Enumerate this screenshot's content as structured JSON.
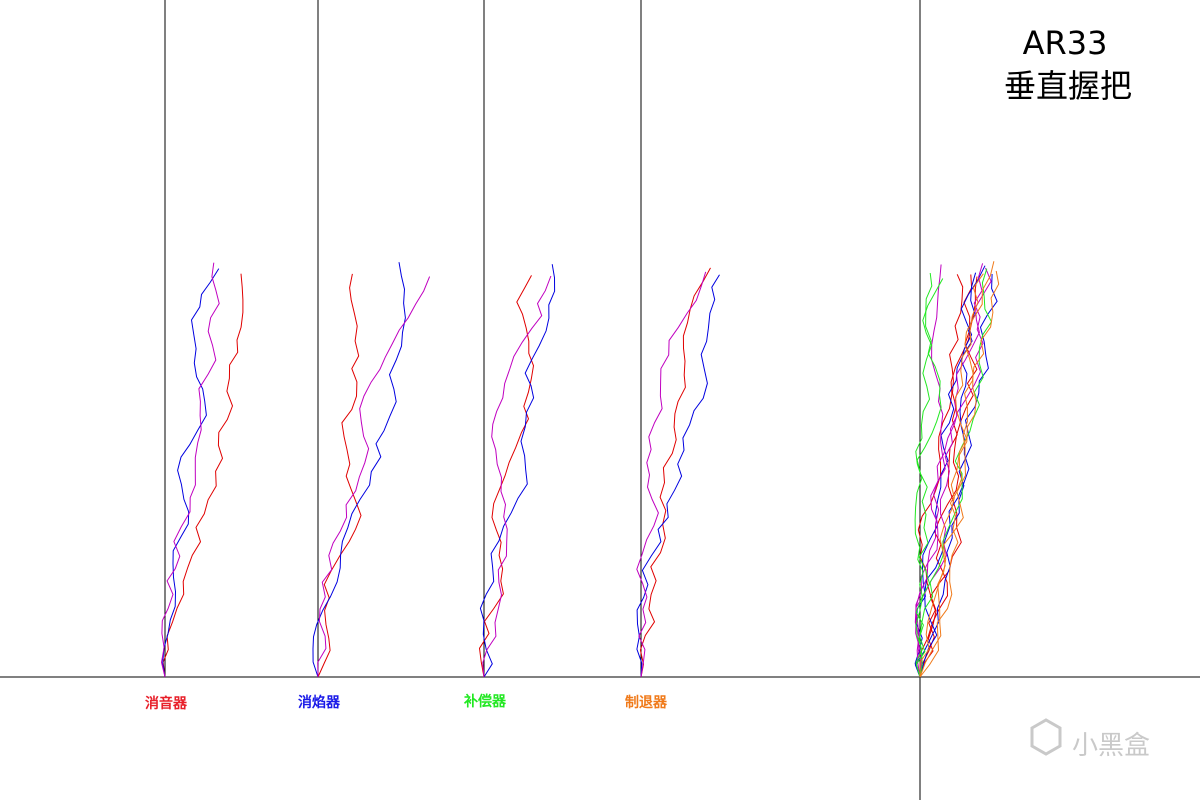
{
  "header": {
    "title": "AR33",
    "subtitle": "垂直握把"
  },
  "columns": [
    {
      "label": "消音器"
    },
    {
      "label": "消焰器"
    },
    {
      "label": "补偿器"
    },
    {
      "label": "制退器"
    }
  ],
  "watermark": "小黑盒"
}
